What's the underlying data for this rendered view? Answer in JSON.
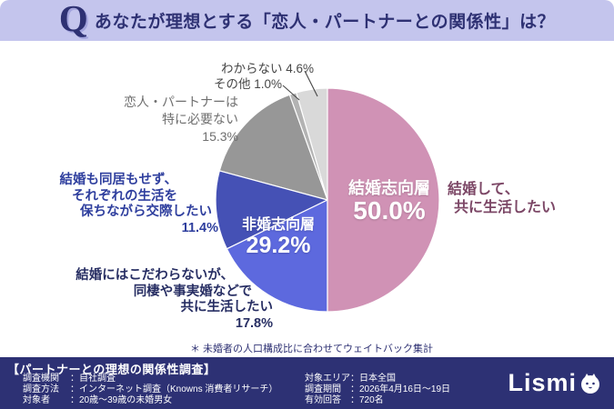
{
  "header": {
    "q_mark": "Q",
    "title": "あなたが理想とする「恋人・パートナーとの関係性」は？"
  },
  "chart_data": {
    "type": "pie",
    "title": "あなたが理想とする「恋人・パートナーとの関係性」は？",
    "unit": "percent",
    "direction": "clockwise",
    "start_angle_deg": 0,
    "slices": [
      {
        "label": "結婚して、共に生活したい",
        "value": 50.0,
        "color": "#d092b5",
        "group": "結婚志向層"
      },
      {
        "label": "結婚にはこだわらないが、同棲や事実婚などで共に生活したい",
        "value": 17.8,
        "color": "#5d69de",
        "group": "非婚志向層"
      },
      {
        "label": "結婚も同居もせず、それぞれの生活を保ちながら交際したい",
        "value": 11.4,
        "color": "#4551b5",
        "group": "非婚志向層"
      },
      {
        "label": "恋人・パートナーは特に必要ない",
        "value": 15.3,
        "color": "#979797",
        "group": ""
      },
      {
        "label": "その他",
        "value": 1.0,
        "color": "#b3b3b3",
        "group": ""
      },
      {
        "label": "わからない",
        "value": 4.6,
        "color": "#d9d9d9",
        "group": ""
      }
    ],
    "groups": [
      {
        "label": "結婚志向層",
        "pct_text": "50.0%",
        "value": 50.0
      },
      {
        "label": "非婚志向層",
        "pct_text": "29.2%",
        "value": 29.2
      }
    ],
    "note": "＊ 未婚者の人口構成比に合わせてウェイトバック集計"
  },
  "callouts": {
    "wakaranai": "わからない 4.6%",
    "sonota": "その他 1.0%",
    "need_none": [
      "恋人・パートナーは",
      "特に必要ない",
      "15.3%"
    ],
    "separate": [
      "結婚も同居もせず、",
      "それぞれの生活を",
      "保ちながら交際したい",
      "11.4%"
    ],
    "cohabit": [
      "結婚にはこだわらないが、",
      "同棲や事実婚などで",
      "共に生活したい",
      "17.8%"
    ],
    "marry": [
      "結婚して、",
      "共に生活したい"
    ]
  },
  "footer": {
    "title": "【パートナーとの理想の関係性調査】",
    "rows_left": [
      {
        "label": "調査機関",
        "value": "：自社調査"
      },
      {
        "label": "調査方法",
        "value": "：インターネット調査（Knowns 消費者リサーチ）"
      },
      {
        "label": "対象者",
        "value": "：20歳～39歳の未婚男女"
      }
    ],
    "rows_right": [
      {
        "label": "対象エリア",
        "value": "：日本全国"
      },
      {
        "label": "調査期間",
        "value": "：2026年4月16日～19日"
      },
      {
        "label": "有効回答",
        "value": "：720名"
      }
    ],
    "logo_text": "Lismi"
  },
  "colors": {
    "header_bg": "#c4c5ed",
    "navy": "#2e3173",
    "footer_bg": "#2d3174",
    "callout_gray": "#474747"
  }
}
